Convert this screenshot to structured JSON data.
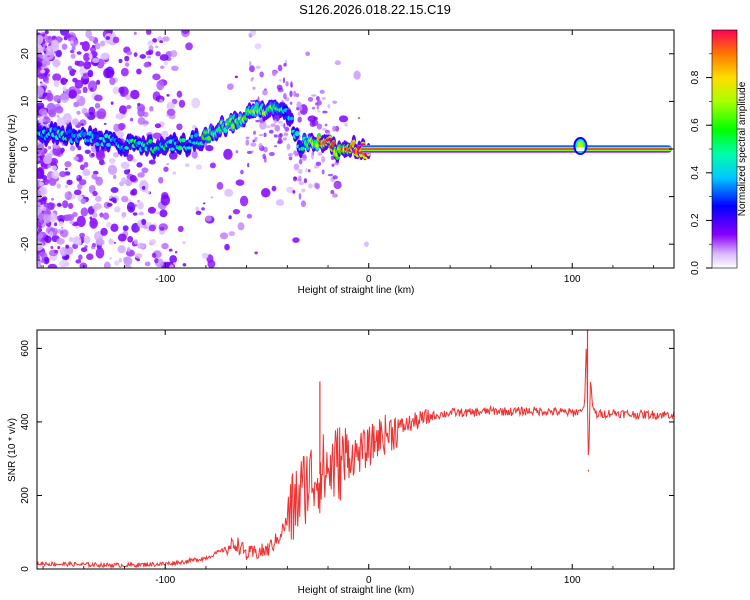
{
  "title": "S126.2026.018.22.15.C19",
  "chart_data": [
    {
      "type": "heatmap",
      "name": "spectrogram",
      "xlabel": "Height of straight line (km)",
      "ylabel": "Frequency (Hz)",
      "xlim": [
        -163,
        150
      ],
      "ylim": [
        -25,
        25
      ],
      "xticks": [
        -100,
        0,
        100
      ],
      "yticks": [
        -20,
        -10,
        0,
        10,
        20
      ],
      "colorbar": {
        "label": "Normalized spectral amplitude",
        "range": [
          0,
          1
        ],
        "ticks": [
          0.0,
          0.2,
          0.4,
          0.6,
          0.8
        ]
      },
      "ridge": {
        "x": [
          -163,
          -150,
          -140,
          -130,
          -120,
          -110,
          -100,
          -90,
          -80,
          -72,
          -65,
          -58,
          -52,
          -46,
          -42,
          -38,
          -34,
          -30,
          -26,
          -22,
          -18,
          -14,
          -10,
          -5,
          0,
          20,
          50,
          80,
          100,
          104,
          108,
          150
        ],
        "freq": [
          3.5,
          3.0,
          2.5,
          1.8,
          0.8,
          0.5,
          0.5,
          1.0,
          2.5,
          4.5,
          6.0,
          7.5,
          8.0,
          9.0,
          8.5,
          6.0,
          0.5,
          1.5,
          2.0,
          1.0,
          1.5,
          -1.0,
          0.0,
          0.0,
          0.0,
          0.0,
          0.0,
          0.0,
          0.0,
          0.3,
          0.0,
          0.0
        ],
        "amplitude": [
          0.32,
          0.3,
          0.3,
          0.28,
          0.3,
          0.35,
          0.35,
          0.3,
          0.4,
          0.45,
          0.45,
          0.48,
          0.5,
          0.42,
          0.35,
          0.25,
          0.3,
          0.45,
          0.55,
          0.9,
          0.8,
          0.7,
          0.8,
          0.9,
          0.95,
          0.95,
          0.95,
          0.95,
          0.95,
          0.5,
          0.95,
          0.95
        ]
      }
    },
    {
      "type": "line",
      "name": "snr",
      "xlabel": "Height of straight line (km)",
      "ylabel": "SNR (10 * v/v)",
      "xlim": [
        -163,
        150
      ],
      "ylim": [
        0,
        650
      ],
      "xticks": [
        -100,
        0,
        100
      ],
      "yticks": [
        0,
        200,
        400,
        600
      ],
      "color": "#ee3333",
      "x": [
        -163,
        -140,
        -120,
        -100,
        -90,
        -80,
        -70,
        -65,
        -60,
        -50,
        -45,
        -40,
        -35,
        -30,
        -25,
        -20,
        -15,
        -10,
        -5,
        0,
        5,
        10,
        15,
        20,
        25,
        30,
        40,
        50,
        60,
        70,
        80,
        90,
        100,
        104,
        106,
        107,
        108,
        109,
        110,
        112,
        120,
        130,
        140,
        150
      ],
      "y": [
        15,
        12,
        10,
        14,
        20,
        30,
        55,
        70,
        40,
        50,
        80,
        130,
        190,
        240,
        255,
        270,
        290,
        300,
        315,
        330,
        360,
        370,
        385,
        395,
        405,
        415,
        425,
        425,
        430,
        428,
        430,
        428,
        425,
        430,
        440,
        630,
        270,
        520,
        440,
        420,
        425,
        420,
        420,
        420
      ],
      "annotations": [
        {
          "x": -24,
          "y": 510
        },
        {
          "x": 107.5,
          "y": 650
        },
        {
          "x": 108,
          "y": 265
        }
      ]
    }
  ]
}
